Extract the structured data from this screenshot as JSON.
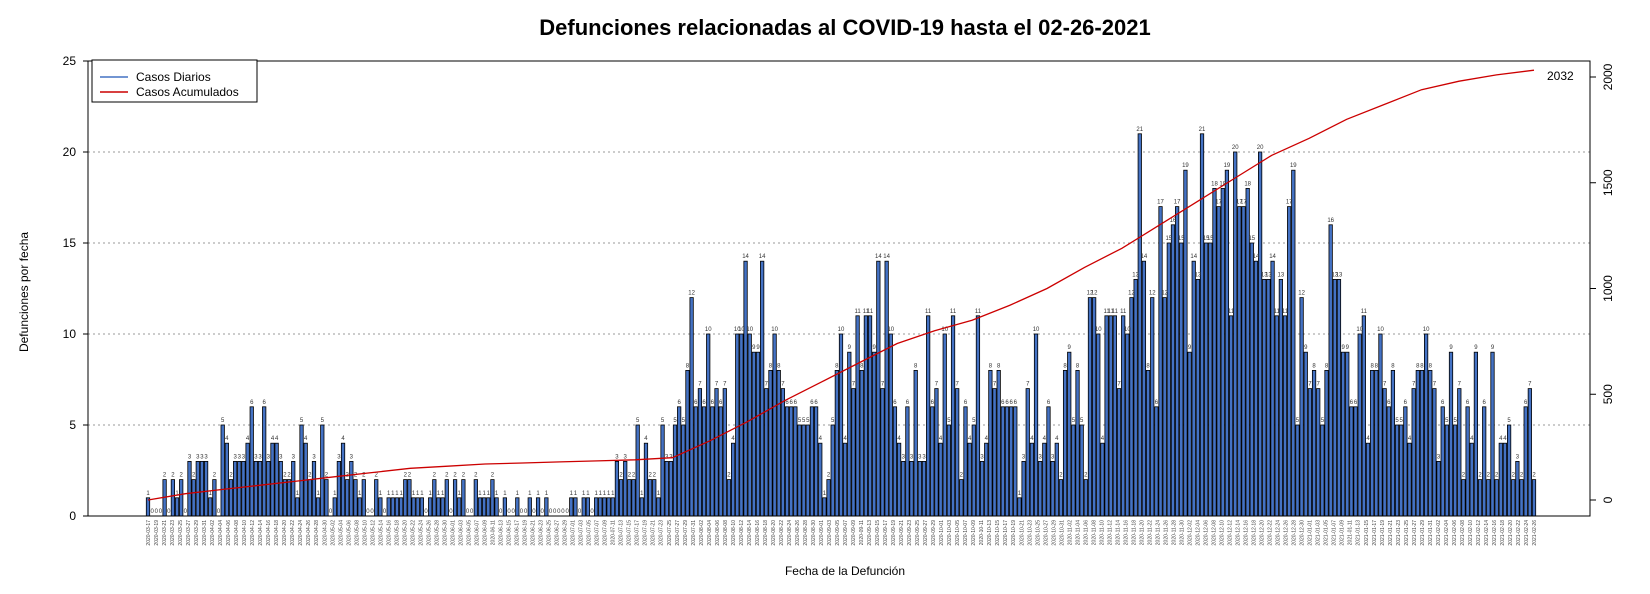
{
  "chart_data": {
    "type": "bar",
    "title": "Defunciones relacionadas al COVID-19 hasta el 02-26-2021",
    "xlabel": "Fecha de la Defunción",
    "ylabel": "Defunciones por fecha",
    "ylim": [
      0,
      25
    ],
    "y_ticks": [
      "0",
      "5",
      "10",
      "15",
      "20",
      "25"
    ],
    "y2lim": [
      0,
      2000
    ],
    "y2_ticks": [
      "0",
      "500",
      "1000",
      "1500",
      "2000"
    ],
    "grid": "horizontal dotted",
    "legend_position": "top-left",
    "x_range": [
      "2020-03-17",
      "2021-02-26"
    ],
    "x_tick_labels": [
      "2020-03-17",
      "2020-03-19",
      "2020-03-21",
      "2020-03-23",
      "2020-03-25",
      "2020-03-27",
      "2020-03-29",
      "2020-03-31",
      "2020-04-02",
      "2020-04-04",
      "2020-04-06",
      "2020-04-08",
      "2020-04-10",
      "2020-04-12",
      "2020-04-14",
      "2020-04-16",
      "2020-04-18",
      "2020-04-20",
      "2020-04-22",
      "2020-04-24",
      "2020-04-26",
      "2020-04-28",
      "2020-04-30",
      "2020-05-02",
      "2020-05-04",
      "2020-05-06",
      "2020-05-08",
      "2020-05-10",
      "2020-05-12",
      "2020-05-14",
      "2020-05-16",
      "2020-05-18",
      "2020-05-20",
      "2020-05-22",
      "2020-05-24",
      "2020-05-26",
      "2020-05-28",
      "2020-05-30",
      "2020-06-01",
      "2020-06-03",
      "2020-06-05",
      "2020-06-07",
      "2020-06-09",
      "2020-06-11",
      "2020-06-13",
      "2020-06-15",
      "2020-06-17",
      "2020-06-19",
      "2020-06-21",
      "2020-06-23",
      "2020-06-25",
      "2020-06-27",
      "2020-06-29",
      "2020-07-01",
      "2020-07-03",
      "2020-07-05",
      "2020-07-07",
      "2020-07-09",
      "2020-07-11",
      "2020-07-13",
      "2020-07-15",
      "2020-07-17",
      "2020-07-19",
      "2020-07-21",
      "2020-07-23",
      "2020-07-25",
      "2020-07-27",
      "2020-07-29",
      "2020-07-31",
      "2020-08-02",
      "2020-08-04",
      "2020-08-06",
      "2020-08-08",
      "2020-08-10",
      "2020-08-12",
      "2020-08-14",
      "2020-08-16",
      "2020-08-18",
      "2020-08-20",
      "2020-08-22",
      "2020-08-24",
      "2020-08-26",
      "2020-08-28",
      "2020-08-30",
      "2020-09-01",
      "2020-09-03",
      "2020-09-05",
      "2020-09-07",
      "2020-09-09",
      "2020-09-11",
      "2020-09-13",
      "2020-09-15",
      "2020-09-17",
      "2020-09-19",
      "2020-09-21",
      "2020-09-23",
      "2020-09-25",
      "2020-09-27",
      "2020-09-29",
      "2020-10-01",
      "2020-10-03",
      "2020-10-05",
      "2020-10-07",
      "2020-10-09",
      "2020-10-11",
      "2020-10-13",
      "2020-10-15",
      "2020-10-17",
      "2020-10-19",
      "2020-10-21",
      "2020-10-23",
      "2020-10-25",
      "2020-10-27",
      "2020-10-29",
      "2020-10-31",
      "2020-11-02",
      "2020-11-04",
      "2020-11-06",
      "2020-11-08",
      "2020-11-10",
      "2020-11-12",
      "2020-11-14",
      "2020-11-16",
      "2020-11-18",
      "2020-11-20",
      "2020-11-22",
      "2020-11-24",
      "2020-11-26",
      "2020-11-28",
      "2020-11-30",
      "2020-12-02",
      "2020-12-04",
      "2020-12-06",
      "2020-12-08",
      "2020-12-10",
      "2020-12-12",
      "2020-12-14",
      "2020-12-16",
      "2020-12-18",
      "2020-12-20",
      "2020-12-22",
      "2020-12-24",
      "2020-12-26",
      "2020-12-28",
      "2020-12-30",
      "2021-01-01",
      "2021-01-03",
      "2021-01-05",
      "2021-01-07",
      "2021-01-09",
      "2021-01-11",
      "2021-01-13",
      "2021-01-15",
      "2021-01-17",
      "2021-01-19",
      "2021-01-21",
      "2021-01-23",
      "2021-01-25",
      "2021-01-27",
      "2021-01-29",
      "2021-01-31",
      "2021-02-02",
      "2021-02-04",
      "2021-02-06",
      "2021-02-08",
      "2021-02-10",
      "2021-02-12",
      "2021-02-14",
      "2021-02-16",
      "2021-02-18",
      "2021-02-20",
      "2021-02-22",
      "2021-02-24",
      "2021-02-26"
    ],
    "series": [
      {
        "name": "Casos Diarios",
        "color": "#4472c4",
        "values": [
          1,
          0,
          0,
          0,
          2,
          0,
          2,
          1,
          2,
          0,
          3,
          2,
          3,
          3,
          3,
          1,
          2,
          0,
          5,
          4,
          2,
          3,
          3,
          3,
          4,
          6,
          3,
          3,
          6,
          3,
          4,
          4,
          3,
          2,
          2,
          3,
          1,
          5,
          4,
          2,
          3,
          1,
          5,
          2,
          0,
          1,
          3,
          4,
          2,
          3,
          2,
          1,
          2,
          0,
          0,
          2,
          1,
          0,
          1,
          1,
          1,
          1,
          2,
          2,
          1,
          1,
          1,
          0,
          1,
          2,
          1,
          1,
          2,
          0,
          2,
          1,
          2,
          0,
          0,
          2,
          1,
          1,
          1,
          2,
          1,
          0,
          1,
          0,
          0,
          1,
          0,
          0,
          1,
          0,
          1,
          0,
          1,
          0,
          0,
          0,
          0,
          0,
          1,
          1,
          0,
          1,
          1,
          0,
          1,
          1,
          1,
          1,
          1,
          3,
          2,
          3,
          2,
          2,
          5,
          1,
          4,
          2,
          2,
          1,
          5,
          3,
          3,
          5,
          6,
          5,
          8,
          12,
          6,
          7,
          6,
          10,
          6,
          7,
          6,
          7,
          2,
          4,
          10,
          10,
          14,
          10,
          9,
          9,
          14,
          7,
          8,
          10,
          8,
          7,
          6,
          6,
          6,
          5,
          5,
          5,
          6,
          6,
          4,
          1,
          2,
          5,
          8,
          10,
          4,
          9,
          7,
          11,
          8,
          11,
          11,
          9,
          14,
          7,
          14,
          10,
          6,
          4,
          3,
          6,
          3,
          8,
          3,
          3,
          11,
          6,
          7,
          4,
          10,
          5,
          11,
          7,
          2,
          6,
          4,
          5,
          11,
          3,
          4,
          8,
          7,
          8,
          6,
          6,
          6,
          6,
          1,
          3,
          7,
          4,
          10,
          3,
          4,
          6,
          3,
          4,
          2,
          8,
          9,
          5,
          8,
          5,
          2,
          12,
          12,
          10,
          4,
          11,
          11,
          11,
          7,
          11,
          10,
          12,
          13,
          21,
          14,
          8,
          12,
          6,
          17,
          12,
          15,
          16,
          17,
          15,
          19,
          9,
          14,
          13,
          21,
          15,
          15,
          18,
          17,
          18,
          19,
          11,
          20,
          17,
          17,
          18,
          15,
          14,
          20,
          13,
          13,
          14,
          11,
          13,
          11,
          17,
          19,
          5,
          12,
          9,
          7,
          8,
          7,
          5,
          8,
          16,
          13,
          13,
          9,
          9,
          6,
          6,
          10,
          11,
          4,
          8,
          8,
          10,
          7,
          6,
          8,
          5,
          5,
          6,
          4,
          7,
          8,
          8,
          10,
          8,
          7,
          3,
          6,
          5,
          9,
          5,
          7,
          2,
          6,
          4,
          9,
          2,
          6,
          2,
          9,
          2,
          4,
          4,
          5,
          2,
          3,
          2,
          6,
          7,
          2
        ]
      },
      {
        "name": "Casos Acumulados",
        "color": "#cc0000",
        "values": [
          0,
          30,
          50,
          70,
          90,
          110,
          130,
          150,
          160,
          170,
          175,
          180,
          185,
          190,
          200,
          280,
          370,
          470,
          560,
          650,
          740,
          800,
          850,
          920,
          1000,
          1100,
          1190,
          1300,
          1410,
          1520,
          1630,
          1710,
          1800,
          1870,
          1940,
          1980,
          2010,
          2032
        ],
        "end_label": "2032"
      }
    ]
  }
}
